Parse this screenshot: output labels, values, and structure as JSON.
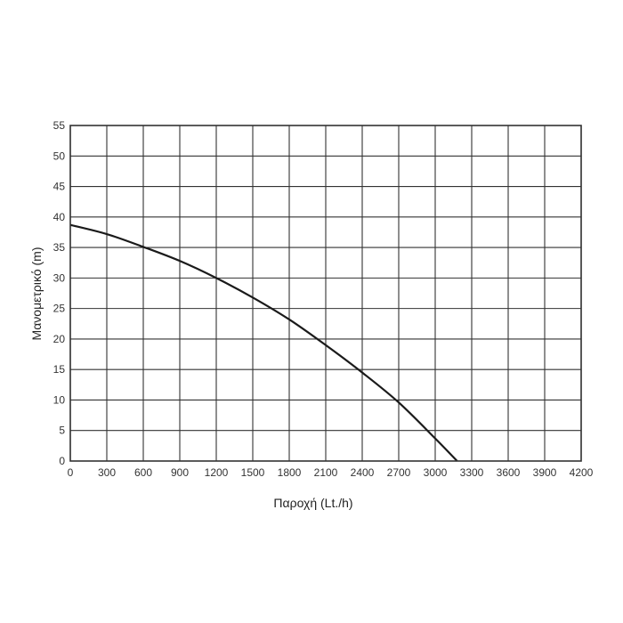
{
  "chart_data": {
    "type": "line",
    "title": "",
    "xlabel": "Παροχή (Lt./h)",
    "ylabel": "Μανομετρικό  (m)",
    "xlim": [
      0,
      4200
    ],
    "ylim": [
      0,
      55
    ],
    "grid": true,
    "x_ticks": [
      "0",
      "300",
      "600",
      "900",
      "1200",
      "1500",
      "1800",
      "2100",
      "2400",
      "2700",
      "3000",
      "3300",
      "3600",
      "3900",
      "4200"
    ],
    "y_ticks": [
      "0",
      "5",
      "10",
      "15",
      "20",
      "25",
      "30",
      "35",
      "40",
      "45",
      "50",
      "55"
    ],
    "series": [
      {
        "color": "#1a1a1a",
        "x": [
          0,
          300,
          600,
          900,
          1200,
          1500,
          1800,
          2100,
          2400,
          2700,
          3000,
          3180
        ],
        "y": [
          38.7,
          37.2,
          35.1,
          32.8,
          30.0,
          26.8,
          23.2,
          19.0,
          14.5,
          9.6,
          3.7,
          0
        ]
      }
    ]
  }
}
